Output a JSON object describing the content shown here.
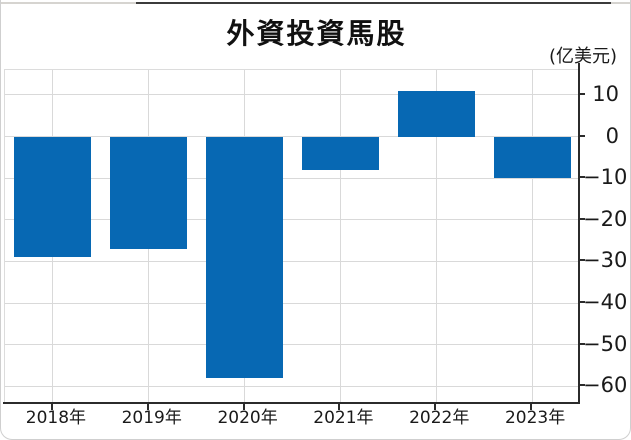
{
  "page": {
    "title": "外資投資馬股",
    "unit_label": "(亿美元)"
  },
  "chart_data": {
    "type": "bar",
    "title": "外資投資馬股",
    "ylabel": "(亿美元)",
    "xlabel": "",
    "categories": [
      "2018年",
      "2019年",
      "2020年",
      "2021年",
      "2022年",
      "2023年"
    ],
    "values": [
      -29,
      -27,
      -58,
      -8,
      11,
      -10
    ],
    "bar_color": "#0768b3",
    "axis_color": "#2b2b2b",
    "grid_color": "#d9d9d9",
    "grid": true,
    "legend_position": "none",
    "ylim": [
      -64,
      16
    ],
    "yticks": [
      10,
      0,
      -10,
      -20,
      -30,
      -40,
      -50,
      -60
    ],
    "ytick_labels": [
      "10",
      "0",
      "−10",
      "−20",
      "−30",
      "−40",
      "−50",
      "−60"
    ]
  }
}
